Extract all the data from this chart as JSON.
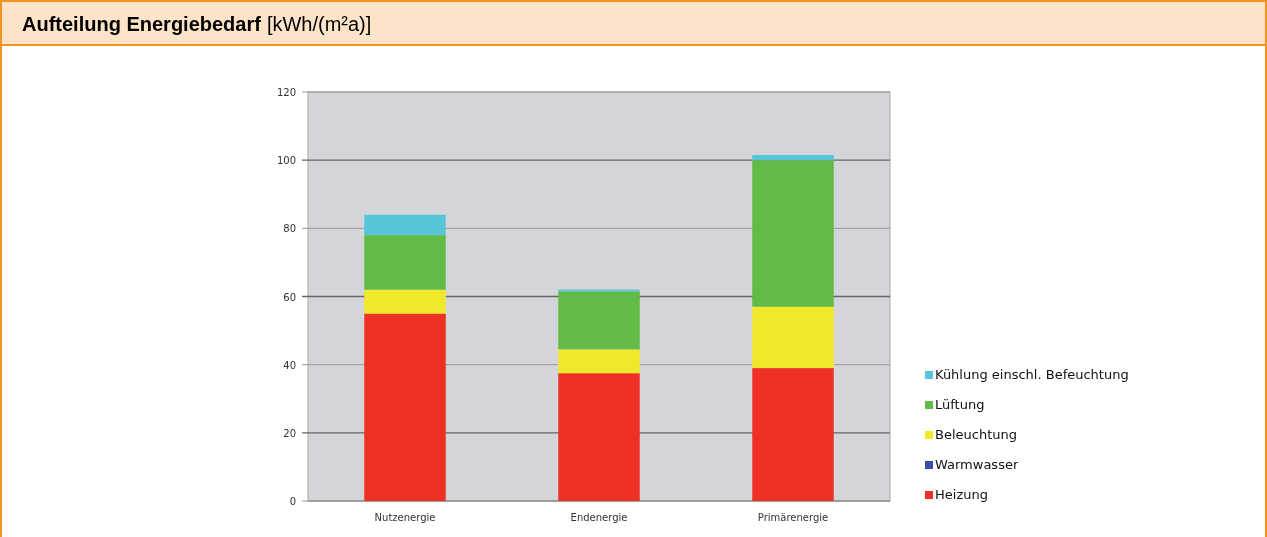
{
  "chart_data": {
    "type": "bar",
    "title": "Aufteilung Energiebedarf",
    "subtitle": "[kWh/(m²a)]",
    "categories": [
      "Nutzenergie",
      "Endenergie",
      "Primärenergie"
    ],
    "stacked": true,
    "series": [
      {
        "name": "Heizung",
        "color": "#ee3124",
        "values": [
          55,
          37.5,
          39
        ]
      },
      {
        "name": "Warmwasser",
        "color": "#3b4ba8",
        "values": [
          0,
          0,
          0
        ]
      },
      {
        "name": "Beleuchtung",
        "color": "#f0e82a",
        "values": [
          7,
          7,
          18
        ]
      },
      {
        "name": "Lüftung",
        "color": "#62bb46",
        "values": [
          16,
          17,
          43
        ]
      },
      {
        "name": "Kühlung einschl. Befeuchtung",
        "color": "#56c5d8",
        "values": [
          6,
          0.5,
          1.5
        ]
      }
    ],
    "ylim": [
      0,
      120
    ],
    "yticks": [
      0,
      20,
      40,
      60,
      80,
      100,
      120
    ],
    "grid": "y",
    "legend": "right"
  }
}
